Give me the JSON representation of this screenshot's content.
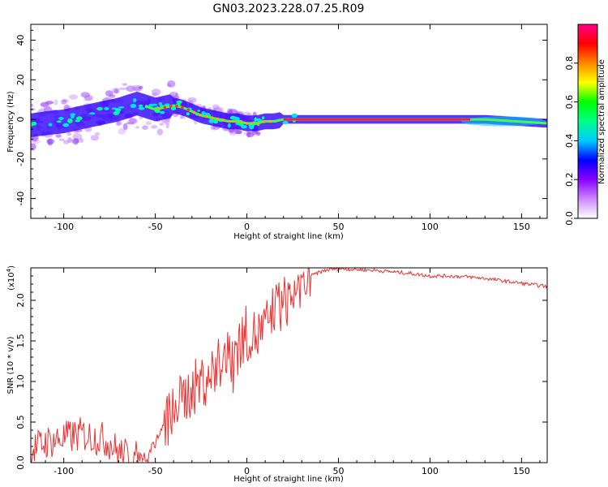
{
  "title": "GN03.2023.228.07.25.R09",
  "chart_data": [
    {
      "type": "heatmap",
      "xlabel": "Height of straight line (km)",
      "ylabel": "Frequency (Hz)",
      "xlim": [
        -118,
        164
      ],
      "ylim": [
        -50,
        48
      ],
      "xticks": [
        -100,
        -50,
        0,
        50,
        100,
        150
      ],
      "xtick_labels": [
        "-100",
        "-50",
        "0",
        "50",
        "100",
        "150"
      ],
      "yticks": [
        -40,
        -20,
        0,
        20,
        40
      ],
      "ytick_labels": [
        "-40",
        "-20",
        "0",
        "20",
        "40"
      ],
      "colorbar": {
        "label": "Normalized spectral amplitude",
        "range": [
          0,
          1
        ],
        "ticks": [
          0.0,
          0.2,
          0.4,
          0.6,
          0.8
        ],
        "tick_labels": [
          "0.0",
          "0.2",
          "0.4",
          "0.6",
          "0.8"
        ],
        "colors": [
          "#ffffff",
          "#cc88ff",
          "#8800ff",
          "#0000ff",
          "#00ccff",
          "#00ff88",
          "#00ff00",
          "#ffff00",
          "#ff8800",
          "#ff0000",
          "#ff0088"
        ]
      },
      "frequency_trace": {
        "x": [
          -118,
          -110,
          -100,
          -90,
          -80,
          -70,
          -60,
          -50,
          -40,
          -35,
          -30,
          -25,
          -20,
          -15,
          -10,
          -5,
          0,
          5,
          10,
          15,
          20,
          30,
          40,
          60,
          100,
          130,
          164
        ],
        "y": [
          -3,
          -2,
          -1,
          1,
          3,
          5,
          8,
          5,
          7,
          6,
          4,
          2,
          1,
          0,
          -1,
          -1,
          -2,
          -2,
          -1,
          -1,
          0,
          0,
          0,
          0,
          0,
          0,
          -2
        ]
      },
      "grid": false
    },
    {
      "type": "line",
      "xlabel": "Height of straight line (km)",
      "ylabel": "SNR (10 * v/v)",
      "y_multiplier": "(x10",
      "y_multiplier_exp": "4",
      "y_multiplier_close": ")",
      "xlim": [
        -118,
        164
      ],
      "ylim": [
        0,
        24000
      ],
      "xticks": [
        -100,
        -50,
        0,
        50,
        100,
        150
      ],
      "xtick_labels": [
        "-100",
        "-50",
        "0",
        "50",
        "100",
        "150"
      ],
      "yticks": [
        0,
        5000,
        10000,
        15000,
        20000
      ],
      "ytick_labels": [
        "0.0",
        "0.5",
        "1.0",
        "1.5",
        "2.0"
      ],
      "series": [
        {
          "color": "#ee3030",
          "x": [
            -118,
            -110,
            -100,
            -90,
            -80,
            -75,
            -70,
            -65,
            -60,
            -55,
            -50,
            -45,
            -40,
            -35,
            -30,
            -25,
            -20,
            -15,
            -10,
            -5,
            0,
            5,
            10,
            15,
            20,
            25,
            30,
            35,
            40,
            45,
            50,
            60,
            70,
            80,
            90,
            100,
            110,
            120,
            130,
            140,
            150,
            164
          ],
          "y": [
            1500,
            2500,
            3000,
            3500,
            3000,
            2500,
            1200,
            800,
            700,
            800,
            2500,
            4500,
            6500,
            7800,
            9000,
            10000,
            11000,
            12000,
            13000,
            14500,
            16000,
            15500,
            16500,
            19000,
            19500,
            21000,
            22000,
            23000,
            23500,
            23800,
            23900,
            23800,
            23700,
            23500,
            23300,
            23000,
            23000,
            22900,
            22700,
            22400,
            22100,
            21700
          ]
        }
      ],
      "grid": false
    }
  ]
}
